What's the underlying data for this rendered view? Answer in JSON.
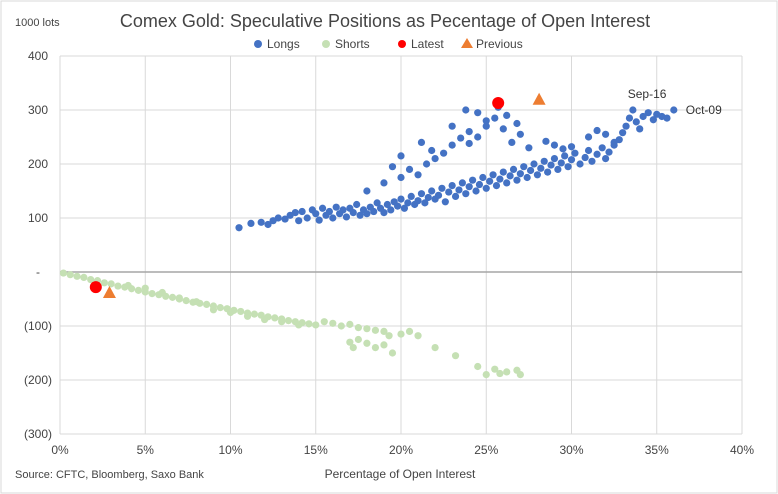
{
  "chart_data": {
    "type": "scatter",
    "title": "Comex Gold: Speculative Positions as Pecentage of Open Interest",
    "y_unit_label": "1000 lots",
    "xlabel": "Percentage  of Open Interest",
    "source": "Source: CFTC, Bloomberg, Saxo Bank",
    "xlim": [
      0,
      0.4
    ],
    "ylim": [
      -300,
      400
    ],
    "x_ticks": [
      0,
      0.05,
      0.1,
      0.15,
      0.2,
      0.25,
      0.3,
      0.35,
      0.4
    ],
    "x_tick_labels": [
      "0%",
      "5%",
      "10%",
      "15%",
      "20%",
      "25%",
      "30%",
      "35%",
      "40%"
    ],
    "y_ticks": [
      400,
      300,
      200,
      100,
      0,
      -100,
      -200,
      -300
    ],
    "y_tick_labels": [
      "400",
      "300",
      "200",
      "100",
      "-",
      "(100)",
      "(200)",
      "(300)"
    ],
    "grid": true,
    "legend_position": "top",
    "series": [
      {
        "name": "Longs",
        "color": "#4472C4",
        "marker": "circle",
        "points": [
          [
            0.105,
            82
          ],
          [
            0.112,
            90
          ],
          [
            0.118,
            92
          ],
          [
            0.122,
            88
          ],
          [
            0.125,
            95
          ],
          [
            0.128,
            100
          ],
          [
            0.132,
            98
          ],
          [
            0.135,
            105
          ],
          [
            0.138,
            110
          ],
          [
            0.14,
            95
          ],
          [
            0.142,
            112
          ],
          [
            0.145,
            100
          ],
          [
            0.148,
            115
          ],
          [
            0.15,
            108
          ],
          [
            0.152,
            96
          ],
          [
            0.154,
            118
          ],
          [
            0.156,
            105
          ],
          [
            0.158,
            112
          ],
          [
            0.16,
            100
          ],
          [
            0.162,
            120
          ],
          [
            0.164,
            108
          ],
          [
            0.166,
            115
          ],
          [
            0.168,
            102
          ],
          [
            0.17,
            118
          ],
          [
            0.172,
            110
          ],
          [
            0.174,
            125
          ],
          [
            0.176,
            105
          ],
          [
            0.178,
            115
          ],
          [
            0.18,
            108
          ],
          [
            0.182,
            120
          ],
          [
            0.184,
            112
          ],
          [
            0.186,
            128
          ],
          [
            0.188,
            118
          ],
          [
            0.19,
            110
          ],
          [
            0.192,
            125
          ],
          [
            0.194,
            115
          ],
          [
            0.196,
            130
          ],
          [
            0.198,
            122
          ],
          [
            0.2,
            135
          ],
          [
            0.202,
            118
          ],
          [
            0.204,
            128
          ],
          [
            0.206,
            140
          ],
          [
            0.208,
            125
          ],
          [
            0.21,
            132
          ],
          [
            0.212,
            145
          ],
          [
            0.214,
            128
          ],
          [
            0.216,
            138
          ],
          [
            0.218,
            150
          ],
          [
            0.22,
            135
          ],
          [
            0.222,
            142
          ],
          [
            0.224,
            155
          ],
          [
            0.226,
            130
          ],
          [
            0.228,
            148
          ],
          [
            0.23,
            160
          ],
          [
            0.232,
            140
          ],
          [
            0.234,
            152
          ],
          [
            0.236,
            165
          ],
          [
            0.238,
            145
          ],
          [
            0.24,
            158
          ],
          [
            0.242,
            170
          ],
          [
            0.244,
            150
          ],
          [
            0.246,
            162
          ],
          [
            0.248,
            175
          ],
          [
            0.25,
            155
          ],
          [
            0.252,
            168
          ],
          [
            0.254,
            180
          ],
          [
            0.256,
            160
          ],
          [
            0.258,
            172
          ],
          [
            0.26,
            185
          ],
          [
            0.262,
            165
          ],
          [
            0.264,
            178
          ],
          [
            0.266,
            190
          ],
          [
            0.268,
            170
          ],
          [
            0.27,
            182
          ],
          [
            0.272,
            195
          ],
          [
            0.274,
            175
          ],
          [
            0.276,
            188
          ],
          [
            0.278,
            200
          ],
          [
            0.28,
            180
          ],
          [
            0.282,
            192
          ],
          [
            0.284,
            205
          ],
          [
            0.286,
            185
          ],
          [
            0.288,
            198
          ],
          [
            0.29,
            210
          ],
          [
            0.292,
            190
          ],
          [
            0.294,
            202
          ],
          [
            0.296,
            215
          ],
          [
            0.298,
            195
          ],
          [
            0.3,
            208
          ],
          [
            0.302,
            220
          ],
          [
            0.305,
            200
          ],
          [
            0.308,
            212
          ],
          [
            0.31,
            225
          ],
          [
            0.312,
            205
          ],
          [
            0.315,
            218
          ],
          [
            0.318,
            230
          ],
          [
            0.32,
            210
          ],
          [
            0.322,
            222
          ],
          [
            0.325,
            235
          ],
          [
            0.328,
            245
          ],
          [
            0.33,
            258
          ],
          [
            0.332,
            270
          ],
          [
            0.334,
            285
          ],
          [
            0.336,
            300
          ],
          [
            0.338,
            278
          ],
          [
            0.34,
            265
          ],
          [
            0.342,
            288
          ],
          [
            0.345,
            295
          ],
          [
            0.348,
            282
          ],
          [
            0.35,
            292
          ],
          [
            0.353,
            288
          ],
          [
            0.356,
            285
          ],
          [
            0.36,
            300
          ],
          [
            0.18,
            150
          ],
          [
            0.19,
            165
          ],
          [
            0.2,
            175
          ],
          [
            0.205,
            190
          ],
          [
            0.21,
            180
          ],
          [
            0.215,
            200
          ],
          [
            0.22,
            210
          ],
          [
            0.225,
            220
          ],
          [
            0.23,
            235
          ],
          [
            0.235,
            248
          ],
          [
            0.24,
            260
          ],
          [
            0.245,
            250
          ],
          [
            0.25,
            270
          ],
          [
            0.255,
            285
          ],
          [
            0.26,
            265
          ],
          [
            0.265,
            240
          ],
          [
            0.27,
            255
          ],
          [
            0.275,
            230
          ],
          [
            0.238,
            300
          ],
          [
            0.245,
            295
          ],
          [
            0.25,
            280
          ],
          [
            0.257,
            305
          ],
          [
            0.262,
            290
          ],
          [
            0.268,
            275
          ],
          [
            0.23,
            270
          ],
          [
            0.24,
            238
          ],
          [
            0.218,
            225
          ],
          [
            0.212,
            240
          ],
          [
            0.2,
            215
          ],
          [
            0.195,
            195
          ],
          [
            0.285,
            242
          ],
          [
            0.29,
            235
          ],
          [
            0.295,
            228
          ],
          [
            0.3,
            232
          ],
          [
            0.31,
            250
          ],
          [
            0.315,
            262
          ],
          [
            0.32,
            255
          ],
          [
            0.325,
            240
          ]
        ]
      },
      {
        "name": "Shorts",
        "color": "#C5E0B4",
        "marker": "circle",
        "points": [
          [
            0.002,
            -2
          ],
          [
            0.006,
            -5
          ],
          [
            0.01,
            -8
          ],
          [
            0.014,
            -10
          ],
          [
            0.018,
            -14
          ],
          [
            0.022,
            -16
          ],
          [
            0.026,
            -20
          ],
          [
            0.03,
            -22
          ],
          [
            0.034,
            -26
          ],
          [
            0.038,
            -28
          ],
          [
            0.042,
            -31
          ],
          [
            0.046,
            -34
          ],
          [
            0.05,
            -37
          ],
          [
            0.054,
            -40
          ],
          [
            0.058,
            -42
          ],
          [
            0.062,
            -45
          ],
          [
            0.066,
            -47
          ],
          [
            0.07,
            -50
          ],
          [
            0.074,
            -53
          ],
          [
            0.078,
            -56
          ],
          [
            0.082,
            -58
          ],
          [
            0.086,
            -60
          ],
          [
            0.09,
            -63
          ],
          [
            0.094,
            -66
          ],
          [
            0.098,
            -68
          ],
          [
            0.102,
            -71
          ],
          [
            0.106,
            -73
          ],
          [
            0.11,
            -76
          ],
          [
            0.114,
            -78
          ],
          [
            0.118,
            -80
          ],
          [
            0.122,
            -83
          ],
          [
            0.126,
            -85
          ],
          [
            0.13,
            -87
          ],
          [
            0.134,
            -90
          ],
          [
            0.138,
            -92
          ],
          [
            0.142,
            -94
          ],
          [
            0.146,
            -96
          ],
          [
            0.15,
            -98
          ],
          [
            0.155,
            -92
          ],
          [
            0.16,
            -95
          ],
          [
            0.165,
            -100
          ],
          [
            0.17,
            -97
          ],
          [
            0.175,
            -103
          ],
          [
            0.18,
            -105
          ],
          [
            0.185,
            -108
          ],
          [
            0.19,
            -110
          ],
          [
            0.193,
            -118
          ],
          [
            0.17,
            -130
          ],
          [
            0.172,
            -140
          ],
          [
            0.175,
            -125
          ],
          [
            0.18,
            -132
          ],
          [
            0.185,
            -140
          ],
          [
            0.19,
            -135
          ],
          [
            0.195,
            -150
          ],
          [
            0.2,
            -115
          ],
          [
            0.205,
            -110
          ],
          [
            0.21,
            -118
          ],
          [
            0.22,
            -140
          ],
          [
            0.232,
            -155
          ],
          [
            0.245,
            -175
          ],
          [
            0.25,
            -190
          ],
          [
            0.255,
            -180
          ],
          [
            0.258,
            -188
          ],
          [
            0.262,
            -185
          ],
          [
            0.268,
            -182
          ],
          [
            0.27,
            -190
          ],
          [
            0.08,
            -55
          ],
          [
            0.09,
            -70
          ],
          [
            0.1,
            -75
          ],
          [
            0.11,
            -82
          ],
          [
            0.12,
            -88
          ],
          [
            0.13,
            -92
          ],
          [
            0.14,
            -98
          ],
          [
            0.06,
            -38
          ],
          [
            0.07,
            -48
          ],
          [
            0.05,
            -30
          ],
          [
            0.04,
            -25
          ]
        ]
      },
      {
        "name": "Latest",
        "color": "#FF0000",
        "marker": "circle",
        "points": [
          [
            0.257,
            313
          ],
          [
            0.021,
            -28
          ]
        ]
      },
      {
        "name": "Previous",
        "color": "#ED7D31",
        "marker": "triangle",
        "points": [
          [
            0.281,
            320
          ],
          [
            0.029,
            -38
          ]
        ]
      }
    ],
    "annotations": [
      {
        "text": "Sep-16",
        "x": 0.333,
        "y": 330
      },
      {
        "text": "Oct-09",
        "x": 0.367,
        "y": 300
      }
    ]
  }
}
